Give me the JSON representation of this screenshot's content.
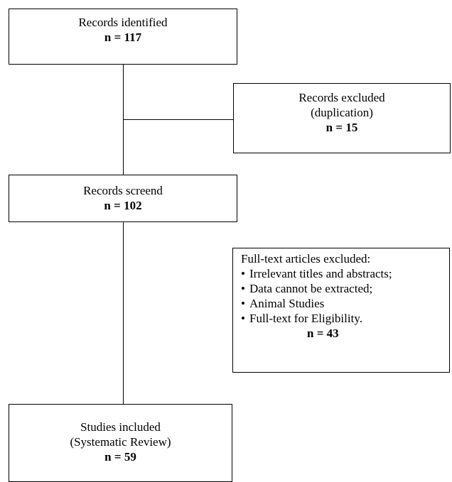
{
  "identified": {
    "label": "Records identified",
    "count": "n = 117"
  },
  "excluded_duplication": {
    "label_line1": "Records excluded",
    "label_line2": "(duplication)",
    "count": "n = 15"
  },
  "screened": {
    "label": "Records screend",
    "count": "n = 102"
  },
  "fulltext_excluded": {
    "heading": "Full-text articles excluded:",
    "bullet": "•",
    "reasons": [
      "Irrelevant titles and abstracts;",
      "Data cannot be extracted;",
      "Animal Studies",
      "Full-text for Eligibility."
    ],
    "count": "n = 43"
  },
  "included": {
    "label_line1": "Studies included",
    "label_line2": "(Systematic Review)",
    "count": "n = 59"
  }
}
